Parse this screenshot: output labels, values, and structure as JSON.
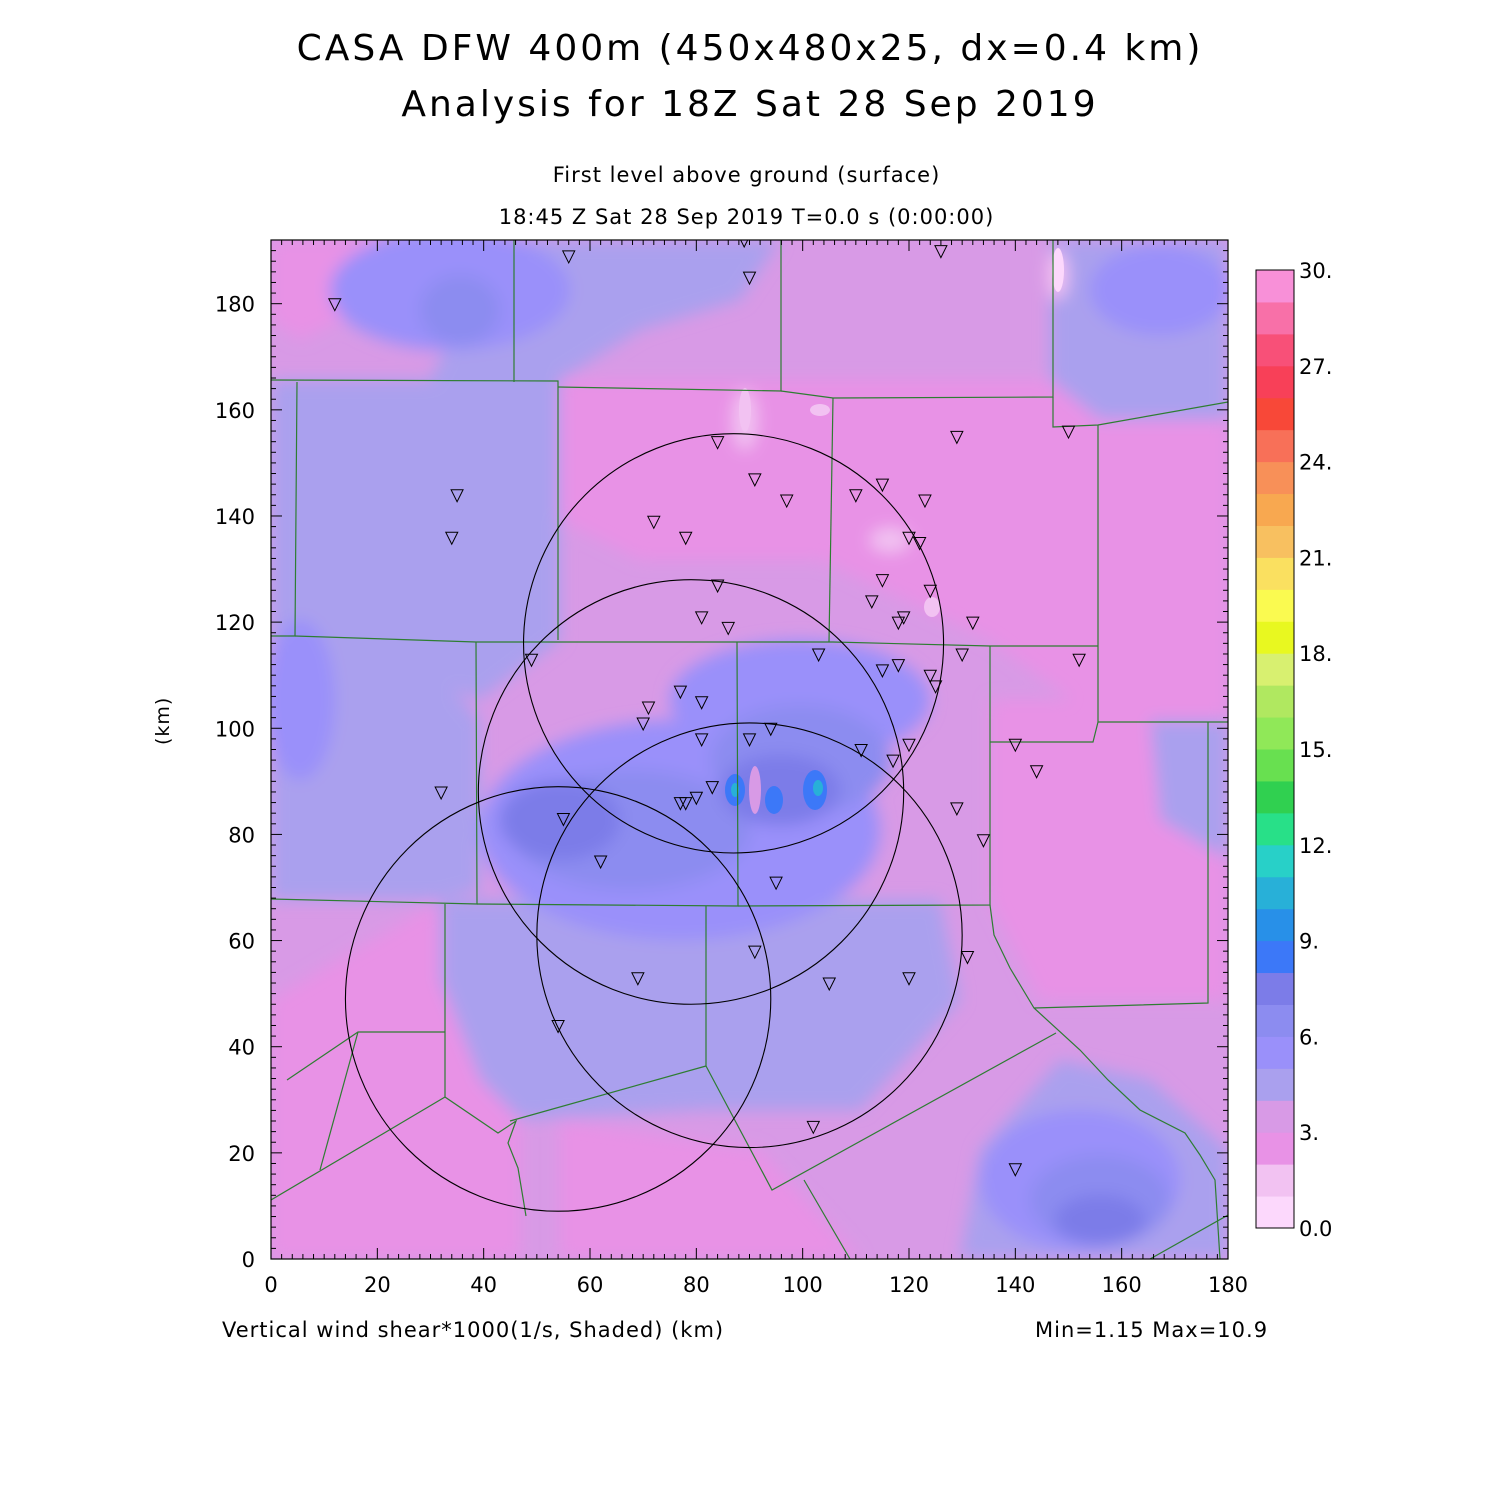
{
  "title": "CASA DFW 400m (450x480x25, dx=0.4 km)",
  "subtitle": "Analysis for 18Z Sat 28 Sep 2019",
  "level_label": "First level above ground (surface)",
  "time_label": "18:45 Z Sat 28 Sep 2019   T=0.0 s (0:00:00)",
  "y_axis_label": "(km)",
  "field_label": "Vertical wind shear*1000(1/s, Shaded)  (km)",
  "minmax_label": "Min=1.15 Max=10.9",
  "x_ticks": [
    "0",
    "20",
    "40",
    "60",
    "80",
    "100",
    "120",
    "140",
    "160",
    "180"
  ],
  "y_ticks": [
    "0",
    "20",
    "40",
    "60",
    "80",
    "100",
    "120",
    "140",
    "160",
    "180"
  ],
  "colorbar_labels": [
    "0.0",
    "3.",
    "6.",
    "9.",
    "12.",
    "15.",
    "18.",
    "21.",
    "24.",
    "27.",
    "30."
  ],
  "colorbar_colors": [
    "#fcd8fc",
    "#f2c2f2",
    "#e892e6",
    "#d89ae6",
    "#aaa0ee",
    "#9a90fa",
    "#8c8cf0",
    "#7c7ce8",
    "#3c78f8",
    "#2890e8",
    "#28b0d8",
    "#28d0c8",
    "#28e088",
    "#30d050",
    "#68e050",
    "#90e858",
    "#b0e860",
    "#d8f070",
    "#e8f820",
    "#fafa50",
    "#fae060",
    "#f8c060",
    "#f8a850",
    "#f89058",
    "#f87058",
    "#f84838",
    "#f84058",
    "#f85078",
    "#f870a8",
    "#f890d8"
  ],
  "chart_data": {
    "type": "heatmap",
    "variable": "Vertical wind shear*1000 (1/s)",
    "xlim": [
      0,
      180
    ],
    "ylim": [
      0,
      192
    ],
    "color_range": [
      0,
      30
    ],
    "min": 1.15,
    "max": 10.9,
    "radar_rings": [
      {
        "center": [
          87,
          116
        ],
        "radius": 39.5
      },
      {
        "center": [
          79,
          88
        ],
        "radius": 40
      },
      {
        "center": [
          90,
          61
        ],
        "radius": 40
      },
      {
        "center": [
          54,
          49
        ],
        "radius": 40
      }
    ],
    "stations": [
      [
        56,
        189
      ],
      [
        89,
        192
      ],
      [
        126,
        190
      ],
      [
        90,
        185
      ],
      [
        12,
        180
      ],
      [
        150,
        156
      ],
      [
        129,
        155
      ],
      [
        84,
        154
      ],
      [
        91,
        147
      ],
      [
        97,
        143
      ],
      [
        110,
        144
      ],
      [
        115,
        146
      ],
      [
        123,
        143
      ],
      [
        35,
        144
      ],
      [
        72,
        139
      ],
      [
        34,
        136
      ],
      [
        78,
        136
      ],
      [
        120,
        136
      ],
      [
        122,
        135
      ],
      [
        115,
        128
      ],
      [
        84,
        127
      ],
      [
        124,
        126
      ],
      [
        113,
        124
      ],
      [
        81,
        121
      ],
      [
        86,
        119
      ],
      [
        132,
        120
      ],
      [
        118,
        120
      ],
      [
        119,
        121
      ],
      [
        130,
        114
      ],
      [
        103,
        114
      ],
      [
        49,
        113
      ],
      [
        152,
        113
      ],
      [
        118,
        112
      ],
      [
        115,
        111
      ],
      [
        124,
        110
      ],
      [
        125,
        108
      ],
      [
        77,
        107
      ],
      [
        81,
        105
      ],
      [
        71,
        104
      ],
      [
        70,
        101
      ],
      [
        94,
        100
      ],
      [
        90,
        98
      ],
      [
        81,
        98
      ],
      [
        111,
        96
      ],
      [
        120,
        97
      ],
      [
        140,
        97
      ],
      [
        117,
        94
      ],
      [
        144,
        92
      ],
      [
        32,
        88
      ],
      [
        83,
        89
      ],
      [
        80,
        87
      ],
      [
        78,
        86
      ],
      [
        77,
        86
      ],
      [
        129,
        85
      ],
      [
        55,
        83
      ],
      [
        134,
        79
      ],
      [
        62,
        75
      ],
      [
        95,
        71
      ],
      [
        91,
        58
      ],
      [
        131,
        57
      ],
      [
        69,
        53
      ],
      [
        120,
        53
      ],
      [
        105,
        52
      ],
      [
        54,
        44
      ],
      [
        102,
        25
      ],
      [
        140,
        17
      ]
    ]
  }
}
